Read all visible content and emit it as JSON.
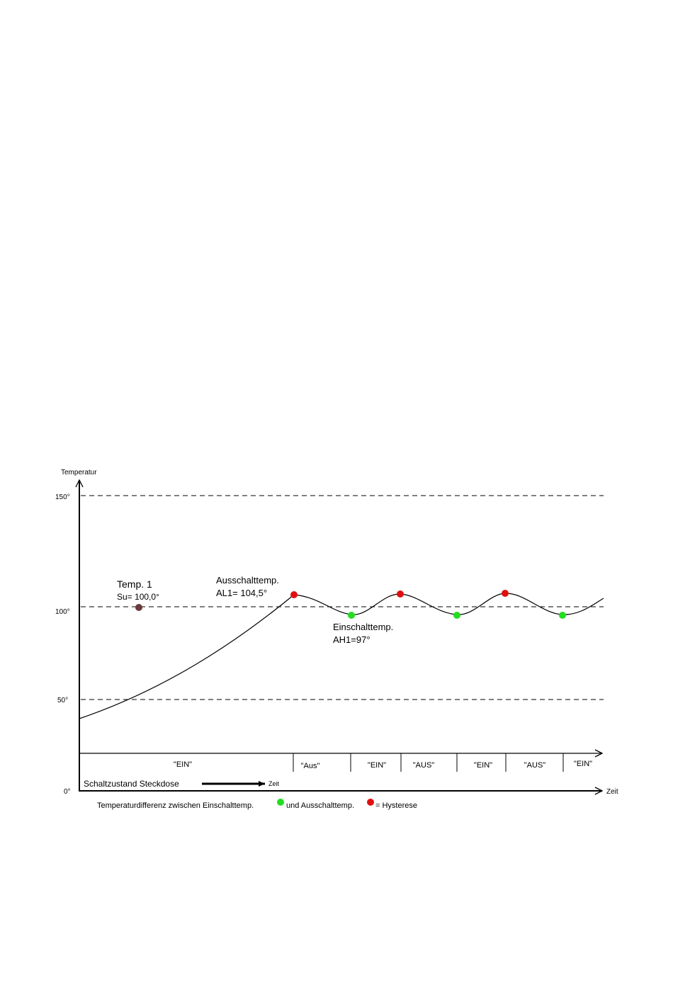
{
  "axis": {
    "y_title": "Temperatur",
    "x_title": "Zeit",
    "y_ticks": [
      "150°",
      "100°",
      "50°",
      "0°"
    ]
  },
  "annotations": {
    "setpoint_title": "Temp. 1",
    "setpoint_value": "Su= 100,0°",
    "off_title": "Ausschalttemp.",
    "off_value": "AL1= 104,5°",
    "on_title": "Einschalttemp.",
    "on_value": "AH1=97°"
  },
  "states": [
    "\"EIN\"",
    "\"Aus\"",
    "\"EIN\"",
    "\"AUS\"",
    "\"EIN\"",
    "\"AUS\"",
    "\"EIN\""
  ],
  "state_bar": {
    "label": "Schaltzustand Steckdose",
    "arrow_label": "Zeit"
  },
  "footnote": {
    "part1": "Temperaturdifferenz zwischen Einschalttemp.",
    "part2": "und Ausschalttemp.",
    "part3": "= Hysterese"
  },
  "colors": {
    "off_point": "#e01010",
    "on_point": "#22dd22",
    "setpoint": "#6b3a3a",
    "line": "#000000"
  },
  "chart_data": {
    "type": "line",
    "x": [
      0,
      1.15,
      2.3,
      3.95,
      4.85,
      5.7,
      6.7,
      7.5,
      8.4,
      9.3,
      10.2
    ],
    "y": [
      37,
      60,
      83,
      104.5,
      97,
      104.5,
      97,
      104.5,
      97,
      104.5,
      97
    ],
    "ylim": [
      0,
      150
    ],
    "reference_lines": [
      150,
      100,
      50
    ],
    "setpoint": 100.0,
    "switch_off_temp": 104.5,
    "switch_on_temp": 97,
    "grid": false
  }
}
